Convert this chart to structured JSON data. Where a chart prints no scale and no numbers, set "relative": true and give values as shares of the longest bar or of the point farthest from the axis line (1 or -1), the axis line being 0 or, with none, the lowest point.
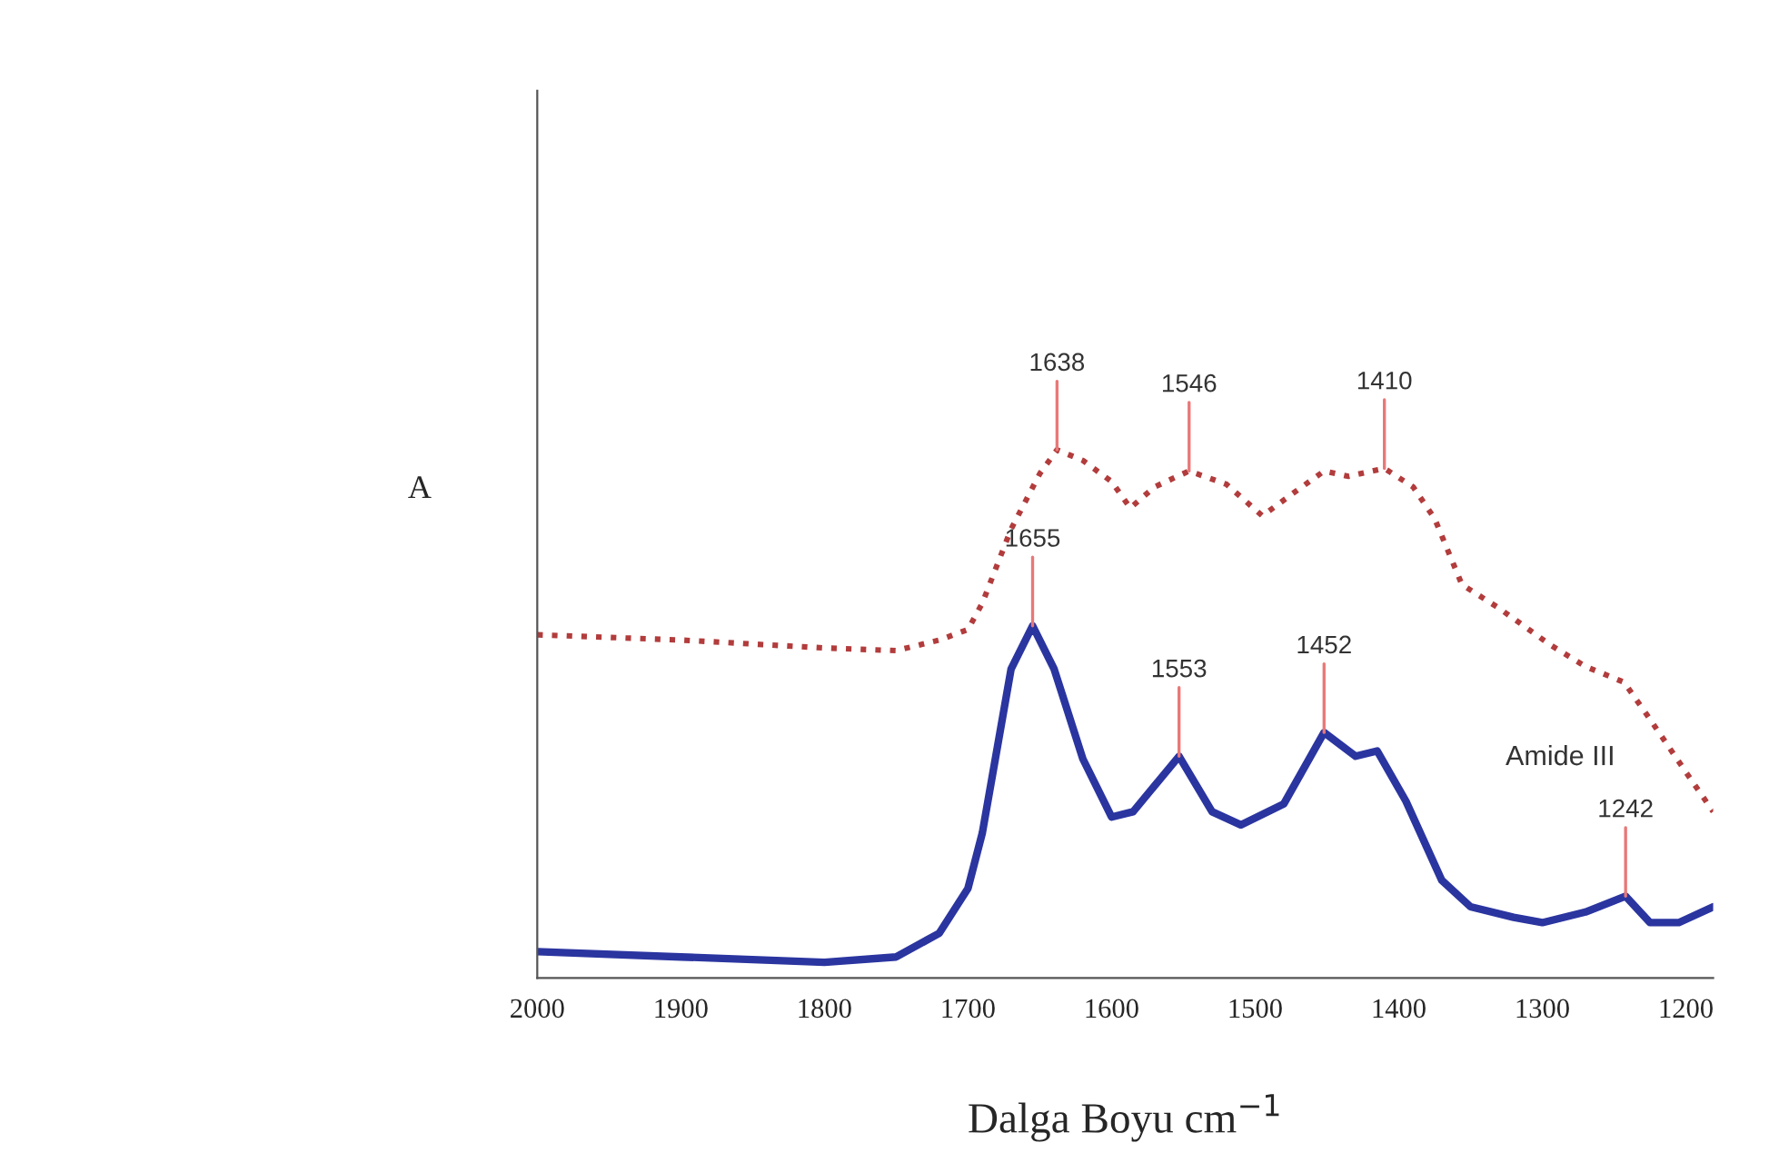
{
  "chart_data": {
    "type": "line",
    "relative": true,
    "ylabel": "A",
    "xlabel": "Dalga Boyu cm$^{−1}$",
    "xlim": [
      2000,
      1181
    ],
    "xticks": [
      2000,
      1900,
      1800,
      1700,
      1600,
      1500,
      1400,
      1300,
      1200
    ],
    "grid": false,
    "legend": false,
    "series": [
      {
        "color": "#b23c3c",
        "line_style": "dotted",
        "x": [
          2000,
          1900,
          1800,
          1750,
          1720,
          1700,
          1690,
          1670,
          1650,
          1638,
          1620,
          1600,
          1587,
          1570,
          1546,
          1520,
          1495,
          1475,
          1452,
          1435,
          1410,
          1390,
          1375,
          1356,
          1330,
          1294,
          1270,
          1243,
          1225,
          1200,
          1181
        ],
        "values": [
          0.65,
          0.64,
          0.625,
          0.62,
          0.64,
          0.66,
          0.71,
          0.85,
          0.955,
          1.0,
          0.98,
          0.94,
          0.89,
          0.93,
          0.96,
          0.935,
          0.875,
          0.915,
          0.96,
          0.95,
          0.965,
          0.93,
          0.87,
          0.745,
          0.7,
          0.63,
          0.59,
          0.56,
          0.49,
          0.39,
          0.315
        ]
      },
      {
        "color": "#2b35a0",
        "line_style": "solid",
        "x": [
          2000,
          1900,
          1800,
          1750,
          1720,
          1700,
          1690,
          1680,
          1670,
          1655,
          1640,
          1620,
          1600,
          1585,
          1553,
          1530,
          1510,
          1480,
          1452,
          1430,
          1415,
          1395,
          1370,
          1350,
          1320,
          1300,
          1270,
          1242,
          1225,
          1205,
          1181
        ],
        "values": [
          0.05,
          0.04,
          0.03,
          0.04,
          0.085,
          0.17,
          0.275,
          0.43,
          0.585,
          0.667,
          0.585,
          0.415,
          0.305,
          0.315,
          0.42,
          0.315,
          0.29,
          0.33,
          0.465,
          0.42,
          0.43,
          0.335,
          0.185,
          0.135,
          0.115,
          0.105,
          0.125,
          0.155,
          0.105,
          0.105,
          0.135
        ]
      }
    ],
    "annotations": [
      {
        "text": "1638",
        "x": 1638,
        "y": 1.0
      },
      {
        "text": "1546",
        "x": 1546,
        "y": 0.96
      },
      {
        "text": "1410",
        "x": 1410,
        "y": 0.965
      },
      {
        "text": "1655",
        "x": 1655,
        "y": 0.667
      },
      {
        "text": "1553",
        "x": 1553,
        "y": 0.42
      },
      {
        "text": "1452",
        "x": 1452,
        "y": 0.465
      },
      {
        "text": "1242",
        "x": 1242,
        "y": 0.155
      },
      "Amide III"
    ]
  }
}
